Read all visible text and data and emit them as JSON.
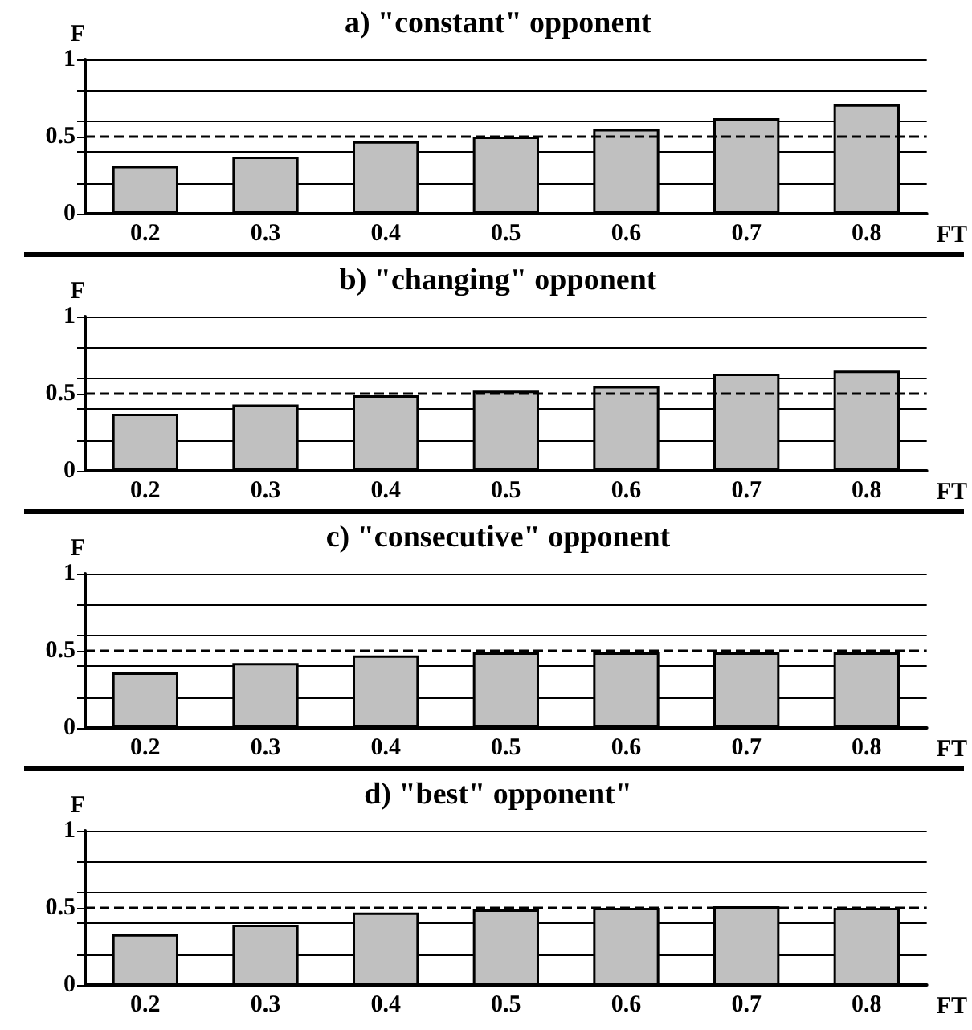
{
  "chart_data": [
    {
      "type": "bar",
      "title": "a) \"constant\" opponent",
      "xlabel": "FT",
      "ylabel": "F",
      "categories": [
        "0.2",
        "0.3",
        "0.4",
        "0.5",
        "0.6",
        "0.7",
        "0.8"
      ],
      "values": [
        0.31,
        0.37,
        0.47,
        0.5,
        0.55,
        0.62,
        0.71
      ],
      "color": "#c0c0c0",
      "ylim": [
        0,
        1
      ],
      "yticks": [
        0,
        {
          "value": 0.2,
          "label": null
        },
        {
          "value": 0.4,
          "label": null
        },
        0.5,
        {
          "value": 0.6,
          "label": null
        },
        {
          "value": 0.8,
          "label": null
        },
        1
      ],
      "grid": "y",
      "ref_lines": [
        {
          "axis": "y",
          "value": 0.5,
          "color": "#000000",
          "line_style": "dashed"
        }
      ]
    },
    {
      "type": "bar",
      "title": "b) \"changing\" opponent",
      "xlabel": "FT",
      "ylabel": "F",
      "categories": [
        "0.2",
        "0.3",
        "0.4",
        "0.5",
        "0.6",
        "0.7",
        "0.8"
      ],
      "values": [
        0.37,
        0.43,
        0.49,
        0.52,
        0.55,
        0.63,
        0.65
      ],
      "color": "#c0c0c0",
      "ylim": [
        0,
        1
      ],
      "yticks": [
        0,
        {
          "value": 0.2,
          "label": null
        },
        {
          "value": 0.4,
          "label": null
        },
        0.5,
        {
          "value": 0.6,
          "label": null
        },
        {
          "value": 0.8,
          "label": null
        },
        1
      ],
      "grid": "y",
      "ref_lines": [
        {
          "axis": "y",
          "value": 0.5,
          "color": "#000000",
          "line_style": "dashed"
        }
      ]
    },
    {
      "type": "bar",
      "title": "c) \"consecutive\" opponent",
      "xlabel": "FT",
      "ylabel": "F",
      "categories": [
        "0.2",
        "0.3",
        "0.4",
        "0.5",
        "0.6",
        "0.7",
        "0.8"
      ],
      "values": [
        0.36,
        0.42,
        0.47,
        0.49,
        0.49,
        0.49,
        0.49
      ],
      "color": "#c0c0c0",
      "ylim": [
        0,
        1
      ],
      "yticks": [
        0,
        {
          "value": 0.2,
          "label": null
        },
        {
          "value": 0.4,
          "label": null
        },
        0.5,
        {
          "value": 0.6,
          "label": null
        },
        {
          "value": 0.8,
          "label": null
        },
        1
      ],
      "grid": "y",
      "ref_lines": [
        {
          "axis": "y",
          "value": 0.5,
          "color": "#000000",
          "line_style": "dashed"
        }
      ]
    },
    {
      "type": "bar",
      "title": "d) \"best\" opponent\"",
      "xlabel": "FT",
      "ylabel": "F",
      "categories": [
        "0.2",
        "0.3",
        "0.4",
        "0.5",
        "0.6",
        "0.7",
        "0.8"
      ],
      "values": [
        0.33,
        0.39,
        0.47,
        0.49,
        0.5,
        0.51,
        0.5
      ],
      "color": "#c0c0c0",
      "ylim": [
        0,
        1
      ],
      "yticks": [
        0,
        {
          "value": 0.2,
          "label": null
        },
        {
          "value": 0.4,
          "label": null
        },
        0.5,
        {
          "value": 0.6,
          "label": null
        },
        {
          "value": 0.8,
          "label": null
        },
        1
      ],
      "grid": "y",
      "ref_lines": [
        {
          "axis": "y",
          "value": 0.5,
          "color": "#000000",
          "line_style": "dashed"
        }
      ]
    }
  ]
}
